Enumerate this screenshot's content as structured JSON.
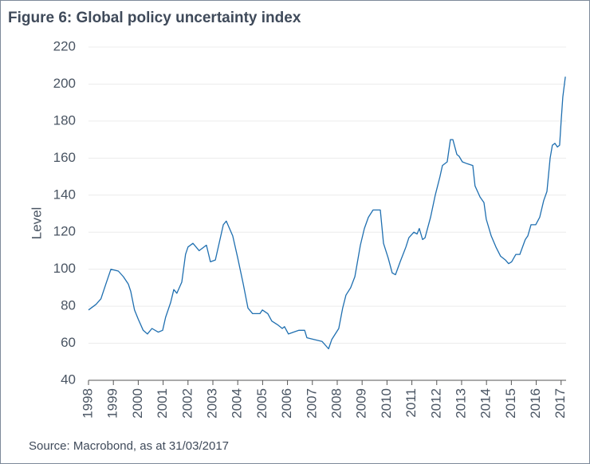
{
  "chart_data": {
    "type": "line",
    "title": "Figure 6: Global policy uncertainty index",
    "y_label": "Level",
    "source": "Source: Macrobond, as at 31/03/2017",
    "color": "#1f6fb0",
    "grid": true,
    "x": [
      1998.0,
      1998.3,
      1998.5,
      1998.7,
      1998.9,
      1999.2,
      1999.4,
      1999.6,
      1999.7,
      1999.85,
      2000.0,
      2000.2,
      2000.37,
      2000.55,
      2000.8,
      2000.98,
      2001.1,
      2001.3,
      2001.43,
      2001.55,
      2001.75,
      2001.9,
      2002.0,
      2002.2,
      2002.45,
      2002.74,
      2002.9,
      2003.1,
      2003.42,
      2003.54,
      2003.8,
      2004.0,
      2004.22,
      2004.41,
      2004.6,
      2004.89,
      2004.99,
      2005.21,
      2005.37,
      2005.6,
      2005.79,
      2005.88,
      2006.04,
      2006.24,
      2006.46,
      2006.69,
      2006.78,
      2007.07,
      2007.39,
      2007.65,
      2007.78,
      2008.06,
      2008.22,
      2008.35,
      2008.54,
      2008.71,
      2008.93,
      2009.09,
      2009.25,
      2009.44,
      2009.73,
      2009.86,
      2010.05,
      2010.21,
      2010.34,
      2010.53,
      2010.76,
      2010.88,
      2011.08,
      2011.21,
      2011.3,
      2011.43,
      2011.53,
      2011.75,
      2011.94,
      2012.13,
      2012.23,
      2012.42,
      2012.55,
      2012.65,
      2012.81,
      2012.9,
      2013.03,
      2013.22,
      2013.45,
      2013.54,
      2013.74,
      2013.9,
      2013.99,
      2014.19,
      2014.38,
      2014.57,
      2014.76,
      2014.89,
      2015.01,
      2015.18,
      2015.34,
      2015.56,
      2015.66,
      2015.79,
      2015.98,
      2016.14,
      2016.3,
      2016.43,
      2016.56,
      2016.65,
      2016.75,
      2016.85,
      2016.94,
      2017.0,
      2017.07,
      2017.17
    ],
    "values": [
      78,
      81,
      84,
      92,
      100,
      99,
      96,
      92,
      88,
      78,
      73,
      67,
      65,
      68,
      66,
      67,
      74,
      82,
      89,
      87,
      93,
      108,
      112,
      114,
      110,
      113,
      104,
      105,
      124,
      126,
      118,
      106,
      92,
      79,
      76,
      76,
      78,
      76,
      72,
      70,
      68,
      69,
      65,
      66,
      67,
      67,
      63,
      62,
      61,
      57,
      62,
      68,
      79,
      86,
      90,
      96,
      113,
      122,
      128,
      132,
      132,
      114,
      106,
      98,
      97,
      104,
      112,
      117,
      120,
      119,
      122,
      116,
      117,
      128,
      140,
      150,
      156,
      158,
      170,
      170,
      162,
      161,
      158,
      157,
      156,
      145,
      139,
      136,
      127,
      118,
      112,
      107,
      105,
      103,
      104,
      108,
      108,
      116,
      118,
      124,
      124,
      128,
      137,
      142,
      160,
      167,
      168,
      166,
      167,
      180,
      193,
      204
    ],
    "xlim": [
      1998,
      2017.2
    ],
    "xticks": [
      1998,
      1999,
      2000,
      2001,
      2002,
      2003,
      2004,
      2005,
      2006,
      2007,
      2008,
      2009,
      2010,
      2011,
      2012,
      2013,
      2014,
      2015,
      2016,
      2017
    ],
    "ylim": [
      40,
      220
    ],
    "yticks": [
      40,
      60,
      80,
      100,
      120,
      140,
      160,
      180,
      200,
      220
    ]
  }
}
